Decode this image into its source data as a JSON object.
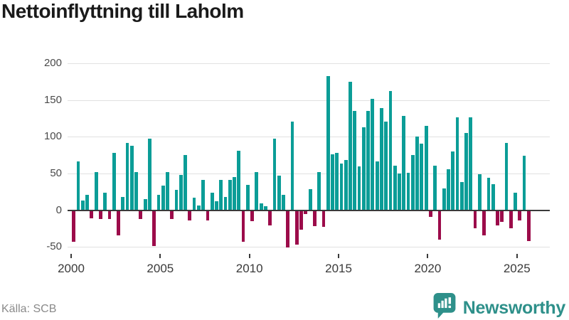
{
  "title": "Nettoinflyttning till Laholm",
  "source": "Källa: SCB",
  "logo": {
    "text": "Newsworthy"
  },
  "chart_data": {
    "type": "bar",
    "title": "Nettoinflyttning till Laholm",
    "x_unit": "quarter",
    "quarters": [
      "2000Q1",
      "2000Q2",
      "2000Q3",
      "2000Q4",
      "2001Q1",
      "2001Q2",
      "2001Q3",
      "2001Q4",
      "2002Q1",
      "2002Q2",
      "2002Q3",
      "2002Q4",
      "2003Q1",
      "2003Q2",
      "2003Q3",
      "2003Q4",
      "2004Q1",
      "2004Q2",
      "2004Q3",
      "2004Q4",
      "2005Q1",
      "2005Q2",
      "2005Q3",
      "2005Q4",
      "2006Q1",
      "2006Q2",
      "2006Q3",
      "2006Q4",
      "2007Q1",
      "2007Q2",
      "2007Q3",
      "2007Q4",
      "2008Q1",
      "2008Q2",
      "2008Q3",
      "2008Q4",
      "2009Q1",
      "2009Q2",
      "2009Q3",
      "2009Q4",
      "2010Q1",
      "2010Q2",
      "2010Q3",
      "2010Q4",
      "2011Q1",
      "2011Q2",
      "2011Q3",
      "2011Q4",
      "2012Q1",
      "2012Q2",
      "2012Q3",
      "2012Q4",
      "2013Q1",
      "2013Q2",
      "2013Q3",
      "2013Q4",
      "2014Q1",
      "2014Q2",
      "2014Q3",
      "2014Q4",
      "2015Q1",
      "2015Q2",
      "2015Q3",
      "2015Q4",
      "2016Q1",
      "2016Q2",
      "2016Q3",
      "2016Q4",
      "2017Q1",
      "2017Q2",
      "2017Q3",
      "2017Q4",
      "2018Q1",
      "2018Q2",
      "2018Q3",
      "2018Q4",
      "2019Q1",
      "2019Q2",
      "2019Q3",
      "2019Q4",
      "2020Q1",
      "2020Q2",
      "2020Q3",
      "2020Q4",
      "2021Q1",
      "2021Q2",
      "2021Q3",
      "2021Q4",
      "2022Q1",
      "2022Q2",
      "2022Q3",
      "2022Q4",
      "2023Q1",
      "2023Q2",
      "2023Q3",
      "2023Q4",
      "2024Q1",
      "2024Q2",
      "2024Q3",
      "2024Q4",
      "2025Q1",
      "2025Q2",
      "2025Q3"
    ],
    "values": [
      -43,
      66,
      13,
      21,
      -11,
      52,
      -12,
      24,
      -12,
      78,
      -34,
      18,
      92,
      88,
      52,
      -12,
      15,
      97,
      -49,
      21,
      33,
      52,
      -12,
      28,
      48,
      75,
      -14,
      17,
      6,
      41,
      -14,
      24,
      12,
      41,
      18,
      41,
      45,
      81,
      -43,
      34,
      -15,
      52,
      9,
      5,
      -21,
      97,
      47,
      21,
      -51,
      121,
      -47,
      -27,
      -5,
      29,
      -22,
      52,
      -23,
      183,
      76,
      78,
      63,
      68,
      175,
      135,
      60,
      113,
      135,
      152,
      66,
      139,
      121,
      162,
      61,
      50,
      128,
      51,
      75,
      100,
      91,
      115,
      -9,
      61,
      -40,
      30,
      56,
      80,
      126,
      38,
      105,
      126,
      -25,
      49,
      -34,
      44,
      35,
      -21,
      -16,
      92,
      -25,
      24,
      -14,
      74,
      -42
    ],
    "ylim": [
      -50,
      200
    ],
    "yticks": [
      -50,
      0,
      50,
      100,
      150,
      200
    ],
    "xticks": [
      2000,
      2005,
      2010,
      2015,
      2020,
      2025
    ],
    "grid": "horizontal",
    "legend": "none",
    "colors": {
      "positive": "#0b9d97",
      "negative": "#9c0b4a"
    }
  }
}
